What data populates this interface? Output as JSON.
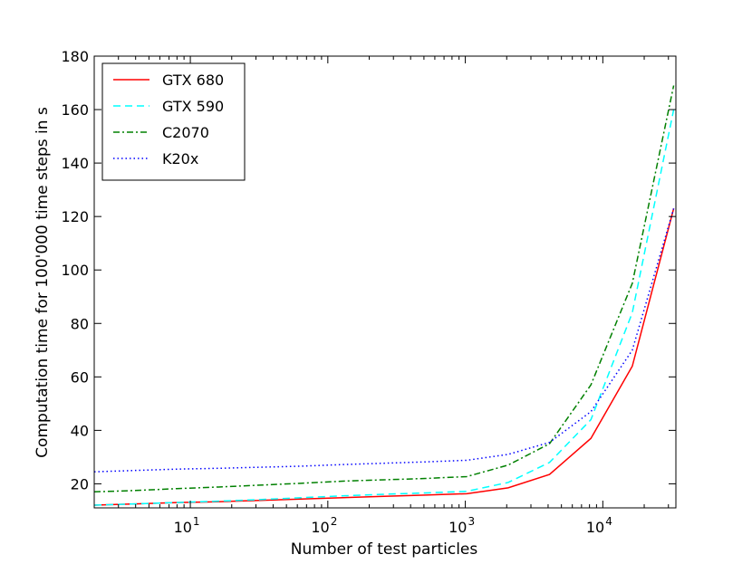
{
  "chart_data": {
    "type": "line",
    "xlabel": "Number of test particles",
    "ylabel": "Computation time for 100'000 time steps in s",
    "xscale": "log",
    "xlim": [
      2,
      34000
    ],
    "ylim": [
      11,
      180
    ],
    "yticks": [
      20,
      40,
      60,
      80,
      100,
      120,
      140,
      160,
      180
    ],
    "xticks": [
      {
        "base": "10",
        "exp": "1",
        "value": 10
      },
      {
        "base": "10",
        "exp": "2",
        "value": 100
      },
      {
        "base": "10",
        "exp": "3",
        "value": 1000
      },
      {
        "base": "10",
        "exp": "4",
        "value": 10000
      }
    ],
    "grid": false,
    "legend_position": "top-left",
    "x": [
      2,
      4,
      8,
      16,
      32,
      64,
      128,
      256,
      512,
      1024,
      2048,
      4096,
      8192,
      16384,
      32768
    ],
    "series": [
      {
        "name": "GTX 680",
        "color": "#ff0000",
        "dash": "solid",
        "values": [
          12.0,
          12.5,
          13.0,
          13.3,
          13.8,
          14.3,
          14.8,
          15.3,
          15.8,
          16.3,
          18.5,
          23.5,
          37.0,
          64.0,
          123.0
        ]
      },
      {
        "name": "GTX 590",
        "color": "#00ffff",
        "dash": "dashed",
        "values": [
          12.0,
          12.5,
          13.0,
          13.5,
          14.1,
          14.8,
          15.5,
          16.1,
          16.6,
          17.2,
          20.5,
          28.0,
          44.0,
          84.0,
          160.0
        ]
      },
      {
        "name": "C2070",
        "color": "#008000",
        "dash": "dashdot",
        "values": [
          17.0,
          17.5,
          18.2,
          18.8,
          19.5,
          20.2,
          21.0,
          21.5,
          22.0,
          22.7,
          27.0,
          35.0,
          57.0,
          95.0,
          169.0
        ]
      },
      {
        "name": "K20x",
        "color": "#0000ff",
        "dash": "dotted",
        "values": [
          24.5,
          25.0,
          25.5,
          25.8,
          26.2,
          26.6,
          27.2,
          27.7,
          28.2,
          28.8,
          31.0,
          35.5,
          47.0,
          70.0,
          123.0
        ]
      }
    ]
  }
}
